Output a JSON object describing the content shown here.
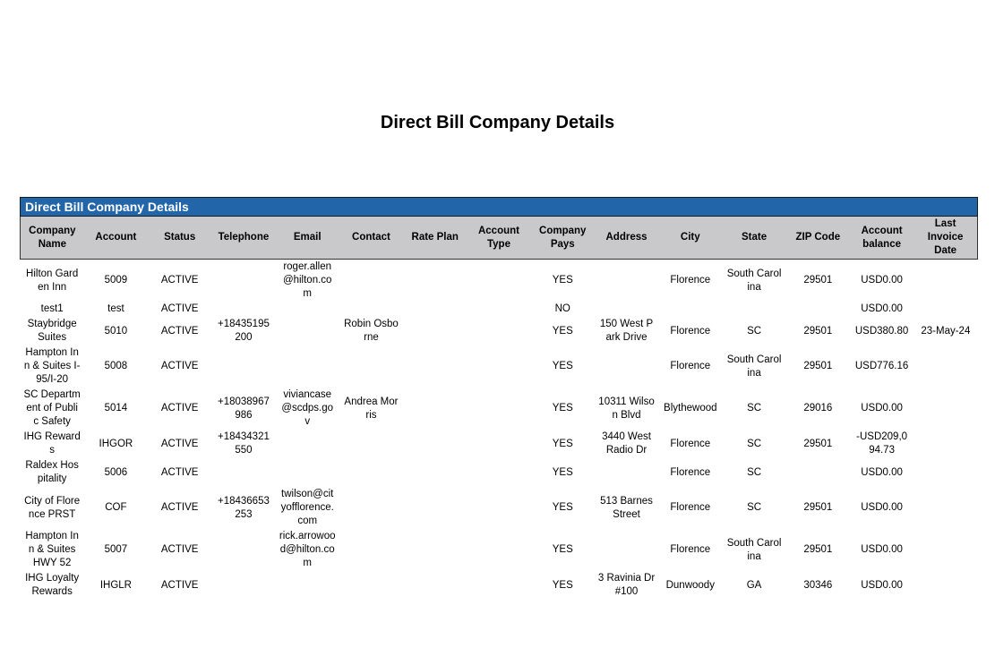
{
  "header": {
    "title": "Direct Bill Company Details"
  },
  "table": {
    "caption": "Direct Bill Company Details",
    "columns": [
      "Company Name",
      "Account",
      "Status",
      "Telephone",
      "Email",
      "Contact",
      "Rate Plan",
      "Account Type",
      "Company Pays",
      "Address",
      "City",
      "State",
      "ZIP Code",
      "Account balance",
      "Last Invoice Date"
    ],
    "rows": [
      [
        "Hilton Garden Inn",
        "5009",
        "ACTIVE",
        null,
        "roger.allen@hilton.com",
        null,
        null,
        null,
        "YES",
        null,
        "Florence",
        "South Carolina",
        "29501",
        "USD0.00",
        null
      ],
      [
        "test1",
        "test",
        "ACTIVE",
        null,
        null,
        null,
        null,
        null,
        "NO",
        null,
        null,
        null,
        null,
        "USD0.00",
        null
      ],
      [
        "Staybridge Suites",
        "5010",
        "ACTIVE",
        "+18435195200",
        null,
        "Robin Osborne",
        null,
        null,
        "YES",
        "150 West Park Drive",
        "Florence",
        "SC",
        "29501",
        "USD380.80",
        "23-May-24"
      ],
      [
        "Hampton Inn & Suites I-95/I-20",
        "5008",
        "ACTIVE",
        null,
        null,
        null,
        null,
        null,
        "YES",
        null,
        "Florence",
        "South Carolina",
        "29501",
        "USD776.16",
        null
      ],
      [
        "SC Department of Public Safety",
        "5014",
        "ACTIVE",
        "+18038967986",
        "viviancase@scdps.gov",
        "Andrea Morris",
        null,
        null,
        "YES",
        "10311 Wilson Blvd",
        "Blythewood",
        "SC",
        "29016",
        "USD0.00",
        null
      ],
      [
        "IHG Rewards",
        "IHGOR",
        "ACTIVE",
        "+18434321550",
        null,
        null,
        null,
        null,
        "YES",
        "3440 West Radio Dr",
        "Florence",
        "SC",
        "29501",
        "-USD209,094.73",
        null
      ],
      [
        "Raldex Hospitality",
        "5006",
        "ACTIVE",
        null,
        null,
        null,
        null,
        null,
        "YES",
        null,
        "Florence",
        "SC",
        null,
        "USD0.00",
        null
      ],
      [
        "City of Florence PRST",
        "COF",
        "ACTIVE",
        "+18436653253",
        "twilson@cityofflorence.com",
        null,
        null,
        null,
        "YES",
        "513 Barnes Street",
        "Florence",
        "SC",
        "29501",
        "USD0.00",
        null
      ],
      [
        "Hampton Inn & Suites HWY 52",
        "5007",
        "ACTIVE",
        null,
        "rick.arrowood@hilton.com",
        null,
        null,
        null,
        "YES",
        null,
        "Florence",
        "South Carolina",
        "29501",
        "USD0.00",
        null
      ],
      [
        "IHG Loyalty Rewards",
        "IHGLR",
        "ACTIVE",
        null,
        null,
        null,
        null,
        null,
        "YES",
        "3 Ravinia Dr #100",
        "Dunwoody",
        "GA",
        "30346",
        "USD0.00",
        null
      ]
    ]
  }
}
